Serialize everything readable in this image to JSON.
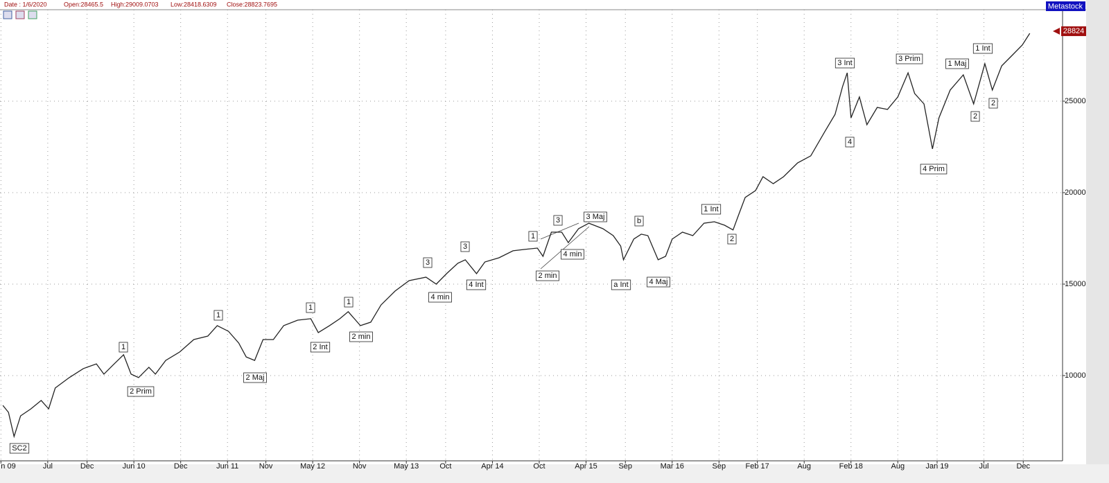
{
  "header": {
    "date": "Date : 1/6/2020",
    "open": "Open:28465.5",
    "high": "High:29009.0703",
    "low": "Low:28418.6309",
    "close": "Close:28823.7695",
    "brand": "Metastock"
  },
  "chart_data": {
    "type": "line",
    "color": "#222222",
    "x": [
      2009.02,
      2009.08,
      2009.14,
      2009.21,
      2009.32,
      2009.43,
      2009.51,
      2009.58,
      2009.73,
      2009.88,
      2010.02,
      2010.1,
      2010.21,
      2010.31,
      2010.39,
      2010.47,
      2010.58,
      2010.65,
      2010.76,
      2010.91,
      2011.06,
      2011.21,
      2011.31,
      2011.43,
      2011.54,
      2011.62,
      2011.71,
      2011.8,
      2011.91,
      2012.02,
      2012.17,
      2012.31,
      2012.39,
      2012.51,
      2012.62,
      2012.71,
      2012.84,
      2012.95,
      2013.06,
      2013.21,
      2013.36,
      2013.54,
      2013.65,
      2013.76,
      2013.88,
      2013.96,
      2014.08,
      2014.17,
      2014.32,
      2014.47,
      2014.58,
      2014.73,
      2014.79,
      2014.88,
      2014.99,
      2015.06,
      2015.17,
      2015.28,
      2015.43,
      2015.54,
      2015.62,
      2015.65,
      2015.76,
      2015.84,
      2015.91,
      2016.02,
      2016.1,
      2016.17,
      2016.28,
      2016.39,
      2016.51,
      2016.62,
      2016.73,
      2016.82,
      2016.88,
      2016.95,
      2017.06,
      2017.14,
      2017.25,
      2017.36,
      2017.51,
      2017.65,
      2017.8,
      2017.91,
      2017.99,
      2018.04,
      2018.08,
      2018.17,
      2018.25,
      2018.36,
      2018.47,
      2018.58,
      2018.69,
      2018.76,
      2018.86,
      2018.95,
      2019.02,
      2019.14,
      2019.28,
      2019.39,
      2019.51,
      2019.59,
      2019.69,
      2019.8,
      2019.91,
      2019.99
    ],
    "values": [
      8370,
      7990,
      6670,
      7800,
      8180,
      8640,
      8180,
      9320,
      9890,
      10380,
      10640,
      10080,
      10640,
      11140,
      10080,
      9890,
      10450,
      10080,
      10830,
      11290,
      11970,
      12160,
      12730,
      12420,
      11780,
      11020,
      10830,
      11970,
      11970,
      12730,
      13030,
      13110,
      12350,
      12730,
      13110,
      13490,
      12730,
      12920,
      13860,
      14620,
      15190,
      15380,
      15000,
      15570,
      16140,
      16330,
      15570,
      16210,
      16440,
      16820,
      16890,
      16970,
      16520,
      17840,
      17840,
      17270,
      18030,
      18330,
      18030,
      17650,
      17080,
      16330,
      17460,
      17730,
      17650,
      16330,
      16520,
      17460,
      17840,
      17650,
      18330,
      18410,
      18220,
      17960,
      18790,
      19740,
      20110,
      20870,
      20490,
      20870,
      21630,
      22010,
      23330,
      24280,
      25800,
      26550,
      24090,
      25230,
      23710,
      24660,
      24550,
      25230,
      26550,
      25420,
      24850,
      22390,
      24090,
      25610,
      26440,
      24850,
      27050,
      25610,
      26930,
      27500,
      28070,
      28710
    ],
    "xlim": [
      2008.99,
      2020.34
    ],
    "xticks": [
      {
        "value": 2009.0,
        "label": "n 09"
      },
      {
        "value": 2009.5,
        "label": "Jul"
      },
      {
        "value": 2009.92,
        "label": "Dec"
      },
      {
        "value": 2010.42,
        "label": "Jun 10"
      },
      {
        "value": 2010.92,
        "label": "Dec"
      },
      {
        "value": 2011.42,
        "label": "Jun 11"
      },
      {
        "value": 2011.83,
        "label": "Nov"
      },
      {
        "value": 2012.33,
        "label": "May 12"
      },
      {
        "value": 2012.83,
        "label": "Nov"
      },
      {
        "value": 2013.33,
        "label": "May 13"
      },
      {
        "value": 2013.75,
        "label": "Oct"
      },
      {
        "value": 2014.25,
        "label": "Apr 14"
      },
      {
        "value": 2014.75,
        "label": "Oct"
      },
      {
        "value": 2015.25,
        "label": "Apr 15"
      },
      {
        "value": 2015.67,
        "label": "Sep"
      },
      {
        "value": 2016.17,
        "label": "Mar 16"
      },
      {
        "value": 2016.67,
        "label": "Sep"
      },
      {
        "value": 2017.08,
        "label": "Feb 17"
      },
      {
        "value": 2017.58,
        "label": "Aug"
      },
      {
        "value": 2018.08,
        "label": "Feb 18"
      },
      {
        "value": 2018.58,
        "label": "Aug"
      },
      {
        "value": 2019.0,
        "label": "Jan 19"
      },
      {
        "value": 2019.5,
        "label": "Jul"
      },
      {
        "value": 2019.92,
        "label": "Dec"
      }
    ],
    "ylim": [
      5340,
      30000
    ],
    "yticks": [
      10000,
      15000,
      20000,
      25000
    ],
    "grid": true,
    "last_price": 28824,
    "annotations": [
      "SC2",
      "2 Prim",
      "1",
      "1",
      "2 Maj",
      "1",
      "2 Int",
      "1",
      "2 min",
      "3",
      "4 min",
      "3",
      "4 Int",
      "1",
      "3",
      "2 min",
      "4 min",
      "3 Maj",
      "b",
      "a Int",
      "4 Maj",
      "1 Int",
      "2",
      "3 Int",
      "4",
      "3 Prim",
      "4 Prim",
      "1 Maj",
      "2",
      "1 Int",
      "2"
    ]
  }
}
